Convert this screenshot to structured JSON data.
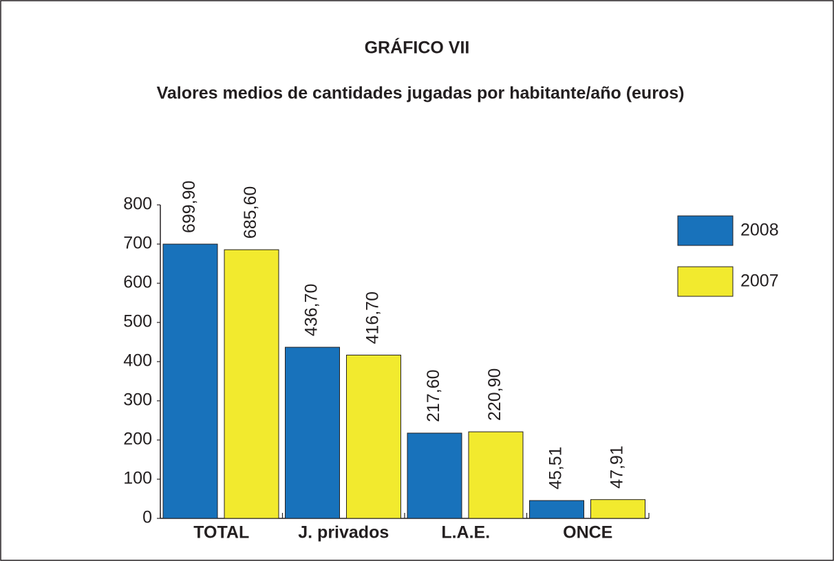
{
  "chart_data": {
    "type": "bar",
    "title": "GRÁFICO VII",
    "subtitle": "Valores medios de cantidades jugadas por habitante/año (euros)",
    "categories": [
      "TOTAL",
      "J. privados",
      "L.A.E.",
      "ONCE"
    ],
    "series": [
      {
        "name": "2008",
        "color": "#1872bb",
        "values": [
          699.9,
          436.7,
          217.6,
          45.51
        ],
        "value_labels": [
          "699,90",
          "436,70",
          "217,60",
          "45,51"
        ]
      },
      {
        "name": "2007",
        "color": "#f2ea2e",
        "values": [
          685.6,
          416.7,
          220.9,
          47.91
        ],
        "value_labels": [
          "685,60",
          "416,70",
          "220,90",
          "47,91"
        ]
      }
    ],
    "ylim": [
      0,
      800
    ],
    "yticks": [
      0,
      100,
      200,
      300,
      400,
      500,
      600,
      700,
      800
    ],
    "legend": "right"
  }
}
